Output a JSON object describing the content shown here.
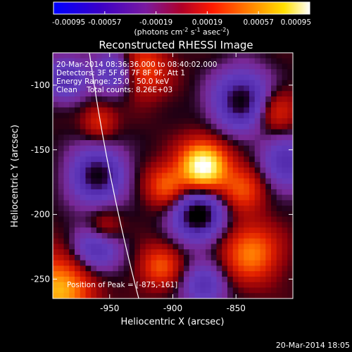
{
  "chart_data": {
    "type": "heatmap",
    "title": "Reconstructed RHESSI Image",
    "xlabel": "Heliocentric X (arcsec)",
    "ylabel": "Heliocentric Y (arcsec)",
    "xlim": [
      -995,
      -805
    ],
    "ylim": [
      -265,
      -75
    ],
    "xticks": [
      -950,
      -900,
      -850
    ],
    "yticks": [
      -100,
      -150,
      -200,
      -250
    ],
    "colorbar": {
      "range": [
        -0.00095,
        0.00095
      ],
      "ticks": [
        "-0.00095",
        "-0.00057",
        "-0.00019",
        "0.00019",
        "0.00057",
        "0.00095"
      ],
      "label_text": "(photons cm",
      "label_exp1": "-2",
      "label_mid": " s",
      "label_exp2": "-1",
      "label_mid2": " asec",
      "label_exp3": "-2",
      "label_end": ")",
      "colormap": "blue-purple-red-orange-yellow-white"
    },
    "info": [
      "20-Mar-2014 08:36:36.000 to 08:40:02.000",
      "Detectors: 3F 5F 6F 7F 8F 9F, Att 1",
      "Energy Range: 25.0 - 50.0 keV",
      "Clean    Total counts: 8.26E+03"
    ],
    "peak": {
      "x": -875,
      "y": -161,
      "label": "Position of Peak = [-875,-161]"
    },
    "sources": [
      {
        "x": -876,
        "y": -163,
        "amp": 1.25,
        "sigma": 13
      },
      {
        "x": -905,
        "y": -178,
        "amp": 0.55,
        "sigma": 11
      },
      {
        "x": -838,
        "y": -230,
        "amp": 0.65,
        "sigma": 15
      },
      {
        "x": -990,
        "y": -258,
        "amp": 0.8,
        "sigma": 18
      },
      {
        "x": -955,
        "y": -212,
        "amp": 0.45,
        "sigma": 10
      },
      {
        "x": -925,
        "y": -88,
        "amp": 0.55,
        "sigma": 14
      },
      {
        "x": -845,
        "y": -180,
        "amp": 0.5,
        "sigma": 12
      },
      {
        "x": -958,
        "y": -128,
        "amp": 0.35,
        "sigma": 9
      },
      {
        "x": -910,
        "y": -240,
        "amp": 0.5,
        "sigma": 11
      },
      {
        "x": -820,
        "y": -120,
        "amp": 0.45,
        "sigma": 12
      },
      {
        "x": -880,
        "y": -200,
        "amp": -1.0,
        "sigma": 14
      },
      {
        "x": -845,
        "y": -112,
        "amp": -0.9,
        "sigma": 16
      },
      {
        "x": -960,
        "y": -170,
        "amp": -0.85,
        "sigma": 15
      },
      {
        "x": -960,
        "y": -225,
        "amp": -0.7,
        "sigma": 13
      },
      {
        "x": -945,
        "y": -90,
        "amp": -0.65,
        "sigma": 12
      },
      {
        "x": -985,
        "y": -95,
        "amp": -0.6,
        "sigma": 12
      },
      {
        "x": -875,
        "y": -255,
        "amp": -0.55,
        "sigma": 12
      },
      {
        "x": -810,
        "y": -160,
        "amp": -0.6,
        "sigma": 14
      }
    ],
    "limb": {
      "x_top": -966,
      "x_bottom": -927
    },
    "grid": false
  },
  "footer": {
    "timestamp": "20-Mar-2014 18:05"
  }
}
